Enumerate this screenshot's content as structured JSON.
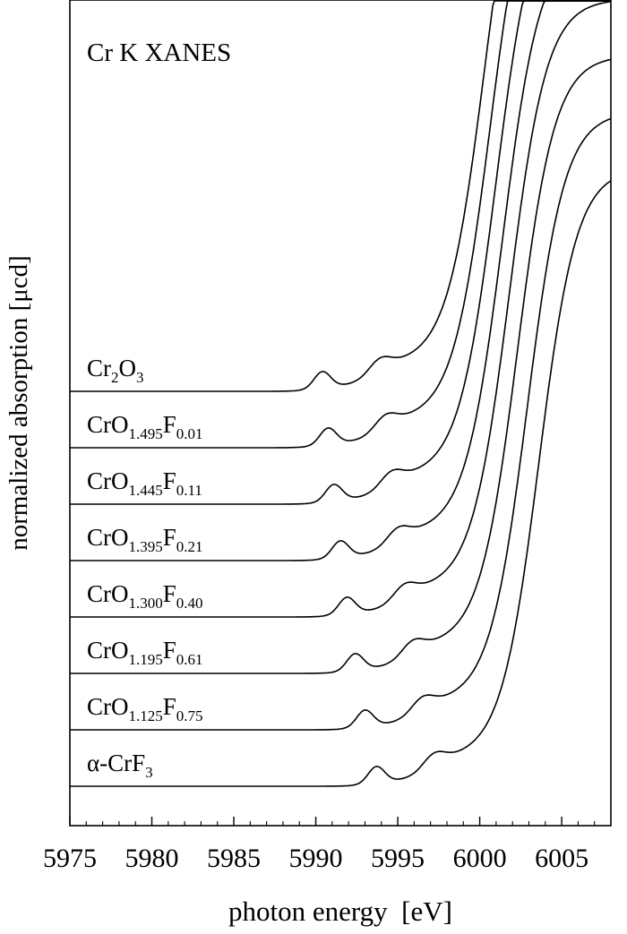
{
  "chart_data": {
    "type": "line",
    "title": "Cr K XANES",
    "xlabel": "photon energy  [eV]",
    "ylabel": "normalized absorption [μcd]",
    "xlim": [
      5975,
      6008
    ],
    "x_ticks": [
      "5975",
      "5980",
      "5985",
      "5990",
      "5995",
      "6000",
      "6005"
    ],
    "grid": false,
    "legend": "labels placed left of each curve",
    "series": [
      {
        "label_base": "Cr",
        "label_sub1": "2",
        "label_mid": "O",
        "label_sub2": "3",
        "offset": 7,
        "shift": 0.0
      },
      {
        "label_base": "CrO",
        "label_sub1": "1.495",
        "label_mid": "F",
        "label_sub2": "0.01",
        "offset": 6,
        "shift": 0.35
      },
      {
        "label_base": "CrO",
        "label_sub1": "1.445",
        "label_mid": "F",
        "label_sub2": "0.11",
        "offset": 5,
        "shift": 0.7
      },
      {
        "label_base": "CrO",
        "label_sub1": "1.395",
        "label_mid": "F",
        "label_sub2": "0.21",
        "offset": 4,
        "shift": 1.1
      },
      {
        "label_base": "CrO",
        "label_sub1": "1.300",
        "label_mid": "F",
        "label_sub2": "0.40",
        "offset": 3,
        "shift": 1.5
      },
      {
        "label_base": "CrO",
        "label_sub1": "1.195",
        "label_mid": "F",
        "label_sub2": "0.61",
        "offset": 2,
        "shift": 2.0
      },
      {
        "label_base": "CrO",
        "label_sub1": "1.125",
        "label_mid": "F",
        "label_sub2": "0.75",
        "offset": 1,
        "shift": 2.6
      },
      {
        "label_base": "α-CrF",
        "label_sub1": "3",
        "label_mid": "",
        "label_sub2": "",
        "offset": 0,
        "shift": 3.3
      }
    ]
  }
}
